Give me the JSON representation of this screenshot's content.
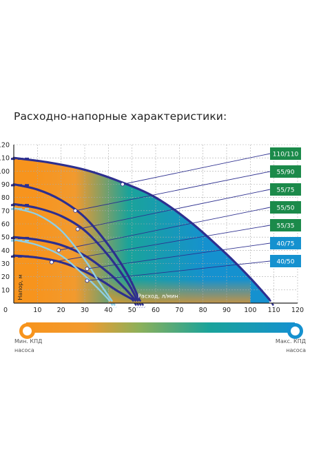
{
  "title": "Расходно-напорные характеристики:",
  "chart_data": {
    "type": "line",
    "xlabel": "Расход, л/мин",
    "ylabel": "Напор, м",
    "xlim": [
      0,
      120
    ],
    "ylim": [
      0,
      120
    ],
    "xticks": [
      0,
      10,
      20,
      30,
      40,
      50,
      60,
      70,
      80,
      90,
      100,
      110,
      120
    ],
    "yticks": [
      10,
      20,
      30,
      40,
      50,
      60,
      70,
      80,
      90,
      100,
      110,
      120
    ],
    "grid": true,
    "series": [
      {
        "name": "110/110",
        "color": "#2d2f8f",
        "x": [
          0,
          15,
          30,
          45,
          60,
          75,
          90,
          100,
          108
        ],
        "y": [
          110,
          106.5,
          101,
          92,
          80,
          61,
          37,
          19,
          3
        ],
        "marker": [
          46,
          90
        ]
      },
      {
        "name": "55/90",
        "color": "#2d2f8f",
        "x": [
          0,
          10,
          20,
          30,
          40,
          48,
          53
        ],
        "y": [
          90,
          86,
          78,
          65,
          44,
          22,
          3
        ],
        "marker": [
          26,
          70
        ]
      },
      {
        "name": "55/75",
        "color": "#2d2f8f",
        "x": [
          0,
          10,
          20,
          30,
          40,
          48,
          52
        ],
        "y": [
          75,
          72,
          66,
          55,
          36,
          16,
          3
        ],
        "marker": [
          27,
          56
        ]
      },
      {
        "name": "55/50",
        "color": "#2d2f8f",
        "x": [
          0,
          10,
          20,
          30,
          40,
          47,
          51
        ],
        "y": [
          50,
          48,
          44,
          36,
          23,
          11,
          3
        ],
        "marker": [
          19,
          40
        ]
      },
      {
        "name": "55/35",
        "color": "#2d2f8f",
        "x": [
          0,
          10,
          20,
          30,
          38,
          44,
          50
        ],
        "y": [
          36,
          34.5,
          31,
          24,
          16,
          9,
          3
        ],
        "marker": [
          16,
          31
        ]
      },
      {
        "name": "40/75",
        "color": "#8fcfe6",
        "x": [
          0,
          10,
          20,
          30,
          36,
          41
        ],
        "y": [
          72,
          67,
          55,
          33,
          16,
          3
        ],
        "marker": [
          31,
          26
        ]
      },
      {
        "name": "40/50",
        "color": "#8fcfe6",
        "x": [
          0,
          10,
          20,
          28,
          34,
          40
        ],
        "y": [
          48,
          44,
          36,
          24,
          14,
          3
        ],
        "marker": [
          31,
          17
        ]
      }
    ],
    "legend": [
      {
        "label": "110/110",
        "color": "#1b8a4a"
      },
      {
        "label": "55/90",
        "color": "#1b8a4a"
      },
      {
        "label": "55/75",
        "color": "#1b8a4a"
      },
      {
        "label": "55/50",
        "color": "#1b8a4a"
      },
      {
        "label": "55/35",
        "color": "#1b8a4a"
      },
      {
        "label": "40/75",
        "color": "#1591cf"
      },
      {
        "label": "40/50",
        "color": "#1591cf"
      }
    ],
    "legend_position": "right"
  },
  "efficiency_scale": {
    "min_label_line1": "Мин. КПД",
    "min_label_line2": "насоса",
    "max_label_line1": "Макс. КПД",
    "max_label_line2": "насоса",
    "min_color": "#f7941d",
    "max_color": "#1591cf",
    "gradient": [
      "#f7941d",
      "#f29a2e",
      "#8db05a",
      "#1aa39a",
      "#1591cf"
    ]
  }
}
